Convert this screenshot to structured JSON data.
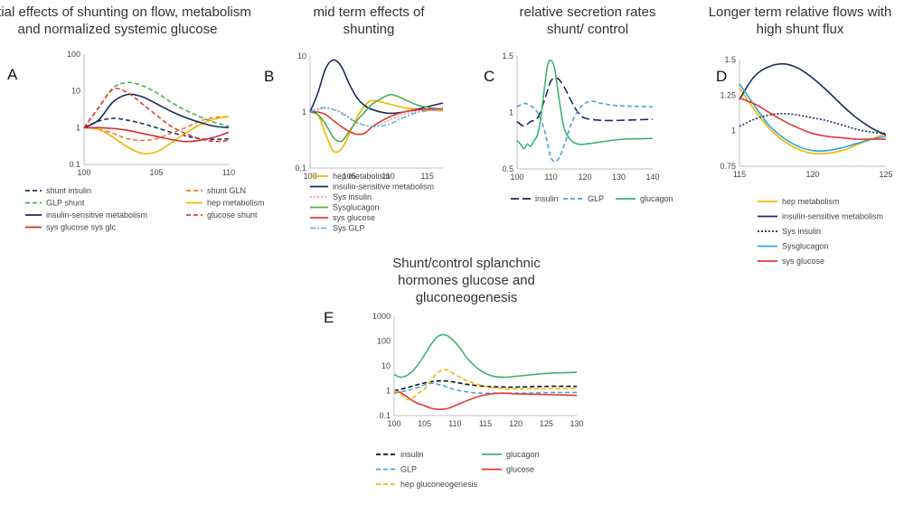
{
  "chart_data": [
    {
      "id": "A",
      "type": "line",
      "panel_label": "A",
      "title": "initial effects of shunting on flow, metabolism and normalized systemic glucose",
      "title_lines": [
        "initial effects of shunting on flow, metabolism",
        "and normalized systemic glucose"
      ],
      "xlabel": "",
      "ylabel": "",
      "yscale": "log",
      "xlim": [
        100,
        110
      ],
      "ylim": [
        0.1,
        100
      ],
      "xticks": [
        100,
        105,
        110
      ],
      "yticks": [
        0.1,
        1,
        10,
        100
      ],
      "ytick_labels": [
        "0.1",
        "1",
        "10",
        "100"
      ],
      "grid": false,
      "legend_position": "bottom",
      "legend_columns": 2,
      "series": [
        {
          "name": "shunt  insulin",
          "color": "#1f3864",
          "dash": "dashed",
          "x": [
            100,
            101,
            102,
            103,
            104,
            105,
            106,
            107,
            108,
            109,
            110
          ],
          "y": [
            1.0,
            1.5,
            1.8,
            1.6,
            1.3,
            1.0,
            0.75,
            0.6,
            0.5,
            0.48,
            0.5
          ]
        },
        {
          "name": "shunt  GLN",
          "color": "#ed7d31",
          "dash": "dashed",
          "x": [
            100,
            101,
            102,
            103,
            104,
            105,
            106,
            107,
            108,
            109,
            110
          ],
          "y": [
            1.0,
            0.9,
            0.7,
            0.5,
            0.45,
            0.5,
            0.7,
            1.0,
            1.5,
            1.9,
            2.0
          ]
        },
        {
          "name": "GLP shunt",
          "color": "#4caf50",
          "dash": "dashed",
          "x": [
            100,
            101,
            102,
            103,
            104,
            105,
            106,
            107,
            108,
            109,
            110
          ],
          "y": [
            1.0,
            3.5,
            12,
            17,
            14,
            9,
            5,
            3,
            2,
            1.4,
            1.1
          ]
        },
        {
          "name": "hep metabolism",
          "color": "#f5b400",
          "dash": "solid",
          "x": [
            100,
            101,
            102,
            103,
            104,
            105,
            106,
            107,
            108,
            109,
            110
          ],
          "y": [
            1.0,
            0.9,
            0.55,
            0.3,
            0.2,
            0.22,
            0.38,
            0.7,
            1.2,
            1.7,
            2.0
          ]
        },
        {
          "name": "insulin-sensitive metabolism",
          "color": "#1b2a5c",
          "dash": "solid",
          "x": [
            100,
            101,
            102,
            103,
            104,
            105,
            106,
            107,
            108,
            109,
            110
          ],
          "y": [
            1.0,
            1.6,
            5,
            8,
            7,
            4.5,
            2.8,
            1.9,
            1.4,
            1.1,
            1.0
          ]
        },
        {
          "name": "glucose shunt",
          "color": "#e53935",
          "dash": "dashed",
          "x": [
            100,
            101,
            102,
            103,
            104,
            105,
            106,
            107,
            108,
            109,
            110
          ],
          "y": [
            1.0,
            3.5,
            11,
            9,
            4.5,
            2.2,
            1.1,
            0.7,
            0.5,
            0.42,
            0.45
          ]
        },
        {
          "name": "sys glucose sys glc",
          "color": "#d32f2f",
          "dash": "solid",
          "x": [
            100,
            101,
            102,
            103,
            104,
            105,
            106,
            107,
            108,
            109,
            110
          ],
          "y": [
            1.0,
            1.0,
            0.95,
            0.85,
            0.7,
            0.58,
            0.48,
            0.42,
            0.45,
            0.55,
            0.75
          ]
        }
      ]
    },
    {
      "id": "B",
      "type": "line",
      "panel_label": "B",
      "title": "mid term effects of shunting",
      "title_lines": [
        "mid term effects of",
        "shunting"
      ],
      "xlabel": "",
      "ylabel": "",
      "yscale": "log",
      "xlim": [
        100,
        117
      ],
      "ylim": [
        0.1,
        10
      ],
      "xticks": [
        100,
        105,
        110,
        115
      ],
      "yticks": [
        0.1,
        1,
        10
      ],
      "ytick_labels": [
        "0.1",
        "1",
        "10"
      ],
      "grid": false,
      "legend_position": "bottom",
      "legend_columns": 1,
      "series": [
        {
          "name": "hep metabolism",
          "color": "#f5b400",
          "dash": "solid",
          "x": [
            100,
            101,
            102,
            103,
            104,
            105,
            106,
            107,
            108,
            110,
            112,
            114,
            117
          ],
          "y": [
            1.0,
            0.9,
            0.4,
            0.2,
            0.22,
            0.4,
            0.8,
            1.3,
            1.6,
            1.4,
            1.2,
            1.1,
            1.05
          ]
        },
        {
          "name": "insulin-sensitive metabolism",
          "color": "#1b2a5c",
          "dash": "solid",
          "x": [
            100,
            101,
            102,
            103,
            104,
            105,
            106,
            107,
            108,
            110,
            112,
            114,
            117
          ],
          "y": [
            1.0,
            2.2,
            6,
            8.5,
            6.5,
            3.2,
            1.8,
            1.3,
            1.1,
            0.95,
            1.0,
            1.15,
            1.45
          ]
        },
        {
          "name": "Sys insulin",
          "color": "#e8a0a0",
          "dash": "dotted",
          "x": [
            100,
            102,
            104,
            106,
            108,
            110,
            112,
            114,
            117
          ],
          "y": [
            1.0,
            1.15,
            1.0,
            0.65,
            0.55,
            0.7,
            0.9,
            1.05,
            1.1
          ]
        },
        {
          "name": "Sysglucagon",
          "color": "#4caf50",
          "dash": "solid",
          "x": [
            100,
            101,
            102,
            103,
            104,
            105,
            106,
            107,
            108,
            110,
            111,
            112,
            114,
            117
          ],
          "y": [
            1.0,
            0.9,
            0.6,
            0.35,
            0.3,
            0.45,
            0.7,
            1.0,
            1.4,
            2.0,
            1.95,
            1.7,
            1.3,
            1.1
          ]
        },
        {
          "name": "sys glucose",
          "color": "#e53935",
          "dash": "solid",
          "x": [
            100,
            101,
            102,
            103,
            104,
            105,
            106,
            107,
            108,
            110,
            112,
            114,
            117
          ],
          "y": [
            1.0,
            1.0,
            0.9,
            0.7,
            0.55,
            0.45,
            0.4,
            0.42,
            0.55,
            0.8,
            1.0,
            1.1,
            1.15
          ]
        },
        {
          "name": "Sys GLP",
          "color": "#6fb0e0",
          "dash": "dashdot",
          "x": [
            100,
            101,
            102,
            103,
            104,
            106,
            108,
            110,
            112,
            114,
            117
          ],
          "y": [
            1.0,
            1.15,
            1.2,
            1.1,
            0.95,
            0.65,
            0.55,
            0.6,
            0.8,
            1.0,
            1.1
          ]
        }
      ]
    },
    {
      "id": "C",
      "type": "line",
      "panel_label": "C",
      "title": "relative secretion rates shunt/ control",
      "title_lines": [
        "relative secretion rates",
        "shunt/ control"
      ],
      "xlabel": "",
      "ylabel": "",
      "yscale": "linear",
      "xlim": [
        100,
        140
      ],
      "ylim": [
        0.5,
        1.5
      ],
      "xticks": [
        100,
        110,
        120,
        130,
        140
      ],
      "yticks": [
        0.5,
        1,
        1.5
      ],
      "ytick_labels": [
        "0.5",
        "1",
        "1.5"
      ],
      "grid": false,
      "legend_position": "bottom",
      "legend_columns": 3,
      "series": [
        {
          "name": "insulin",
          "color": "#1b2a5c",
          "dash": "longdash",
          "x": [
            100,
            102,
            104,
            106,
            108,
            110,
            112,
            114,
            116,
            118,
            120,
            125,
            130,
            140
          ],
          "y": [
            0.92,
            0.88,
            0.92,
            0.95,
            1.1,
            1.28,
            1.3,
            1.22,
            1.1,
            1.0,
            0.95,
            0.93,
            0.93,
            0.94
          ]
        },
        {
          "name": "GLP",
          "color": "#4ba3d9",
          "dash": "dashed",
          "x": [
            100,
            102,
            104,
            106,
            108,
            110,
            112,
            114,
            116,
            118,
            120,
            122,
            125,
            130,
            140
          ],
          "y": [
            1.05,
            1.08,
            1.06,
            1.0,
            0.85,
            0.6,
            0.58,
            0.72,
            0.9,
            1.02,
            1.08,
            1.1,
            1.08,
            1.06,
            1.05
          ]
        },
        {
          "name": "glucagon",
          "color": "#3cb371",
          "dash": "solid",
          "x": [
            100,
            101,
            102,
            103,
            104,
            105,
            106,
            107,
            108,
            109,
            110,
            111,
            112,
            113,
            114,
            116,
            118,
            120,
            125,
            130,
            140
          ],
          "y": [
            0.75,
            0.72,
            0.68,
            0.72,
            0.7,
            0.75,
            0.8,
            0.95,
            1.2,
            1.42,
            1.46,
            1.4,
            1.2,
            1.0,
            0.85,
            0.75,
            0.72,
            0.72,
            0.74,
            0.76,
            0.77
          ]
        }
      ]
    },
    {
      "id": "D",
      "type": "line",
      "panel_label": "D",
      "title": "Longer term relative flows with high shunt flux",
      "title_lines": [
        "Longer term relative flows with",
        "high shunt flux"
      ],
      "xlabel": "",
      "ylabel": "",
      "yscale": "linear",
      "xlim": [
        115,
        125
      ],
      "ylim": [
        0.75,
        1.5
      ],
      "xticks": [
        115,
        120,
        125
      ],
      "yticks": [
        0.75,
        1,
        1.25,
        1.5
      ],
      "ytick_labels": [
        "0.75",
        "1",
        "1.25",
        "1.5"
      ],
      "grid": false,
      "legend_position": "bottom",
      "legend_columns": 1,
      "series": [
        {
          "name": "hep metabolism",
          "color": "#f5b400",
          "dash": "solid",
          "x": [
            115,
            116,
            117,
            118,
            119,
            120,
            121,
            122,
            123,
            124,
            125
          ],
          "y": [
            1.3,
            1.15,
            1.02,
            0.93,
            0.87,
            0.84,
            0.84,
            0.86,
            0.9,
            0.94,
            0.98
          ]
        },
        {
          "name": "insulin-sensitive metabolism",
          "color": "#1b2a5c",
          "dash": "solid",
          "x": [
            115,
            116,
            117,
            118,
            119,
            120,
            121,
            122,
            123,
            124,
            125
          ],
          "y": [
            1.22,
            1.38,
            1.45,
            1.47,
            1.44,
            1.37,
            1.28,
            1.18,
            1.09,
            1.02,
            0.97
          ]
        },
        {
          "name": "Sys insulin",
          "color": "#1b2a5c",
          "dash": "dotted",
          "x": [
            115,
            116,
            117,
            118,
            119,
            120,
            121,
            122,
            123,
            124,
            125
          ],
          "y": [
            1.03,
            1.08,
            1.11,
            1.12,
            1.11,
            1.09,
            1.07,
            1.04,
            1.01,
            0.99,
            0.98
          ]
        },
        {
          "name": "Sysglucagon",
          "color": "#29a8e0",
          "dash": "solid",
          "x": [
            115,
            116,
            117,
            118,
            119,
            120,
            121,
            122,
            123,
            124,
            125
          ],
          "y": [
            1.33,
            1.18,
            1.04,
            0.95,
            0.89,
            0.86,
            0.86,
            0.88,
            0.91,
            0.94,
            0.96
          ]
        },
        {
          "name": "sys glucose",
          "color": "#e53935",
          "dash": "solid",
          "x": [
            115,
            116,
            117,
            118,
            119,
            120,
            121,
            122,
            123,
            124,
            125
          ],
          "y": [
            1.23,
            1.19,
            1.13,
            1.07,
            1.02,
            0.98,
            0.96,
            0.95,
            0.94,
            0.94,
            0.94
          ]
        }
      ]
    },
    {
      "id": "E",
      "type": "line",
      "panel_label": "E",
      "title": "Shunt/control  splanchnic hormones glucose and gluconeogenesis",
      "title_lines": [
        "Shunt/control  splanchnic",
        "hormones glucose and",
        "gluconeogenesis"
      ],
      "xlabel": "",
      "ylabel": "",
      "yscale": "log",
      "xlim": [
        100,
        130
      ],
      "ylim": [
        0.1,
        1000
      ],
      "xticks": [
        100,
        105,
        110,
        115,
        120,
        125,
        130
      ],
      "yticks": [
        0.1,
        1,
        10,
        100,
        1000
      ],
      "ytick_labels": [
        "0.1",
        "1",
        "10",
        "100",
        "1000"
      ],
      "grid": false,
      "legend_position": "bottom",
      "legend_columns": 2,
      "series": [
        {
          "name": "insulin",
          "color": "#111111",
          "dash": "dashed",
          "x": [
            100,
            102,
            104,
            106,
            108,
            110,
            112,
            115,
            118,
            120,
            125,
            130
          ],
          "y": [
            1.0,
            1.3,
            1.8,
            2.3,
            2.5,
            2.2,
            1.8,
            1.5,
            1.4,
            1.4,
            1.5,
            1.5
          ]
        },
        {
          "name": "glucagon",
          "color": "#3cb371",
          "dash": "solid",
          "x": [
            100,
            101,
            102,
            103,
            104,
            105,
            106,
            107,
            108,
            109,
            110,
            111,
            112,
            114,
            116,
            118,
            120,
            125,
            130
          ],
          "y": [
            4.5,
            3.5,
            4,
            6,
            12,
            28,
            70,
            140,
            180,
            150,
            90,
            45,
            20,
            7,
            4,
            3.5,
            3.8,
            5,
            5.5
          ]
        },
        {
          "name": "GLP",
          "color": "#4ba3d9",
          "dash": "dashed",
          "x": [
            100,
            102,
            104,
            106,
            108,
            110,
            112,
            114,
            118,
            122,
            126,
            130
          ],
          "y": [
            0.8,
            1.0,
            1.4,
            2.0,
            1.6,
            1.1,
            0.9,
            0.8,
            0.8,
            0.8,
            0.85,
            0.85
          ]
        },
        {
          "name": "glucose",
          "color": "#e53935",
          "dash": "solid",
          "x": [
            100,
            101,
            102,
            103,
            104,
            105,
            106,
            107,
            108,
            109,
            110,
            112,
            114,
            116,
            118,
            120,
            125,
            130
          ],
          "y": [
            1.0,
            0.85,
            0.6,
            0.4,
            0.3,
            0.25,
            0.2,
            0.18,
            0.18,
            0.2,
            0.25,
            0.4,
            0.6,
            0.75,
            0.8,
            0.75,
            0.7,
            0.65
          ]
        },
        {
          "name": "hep gluconeogenesis",
          "color": "#f5b400",
          "dash": "dashed",
          "x": [
            100,
            101,
            102,
            103,
            104,
            105,
            106,
            107,
            108,
            109,
            110,
            112,
            115,
            118,
            122,
            126,
            130
          ],
          "y": [
            1.0,
            0.8,
            0.45,
            0.5,
            0.8,
            1.2,
            2.5,
            5,
            7,
            6.5,
            4.5,
            2.5,
            1.5,
            1.2,
            1.2,
            1.2,
            1.2
          ]
        }
      ]
    }
  ]
}
